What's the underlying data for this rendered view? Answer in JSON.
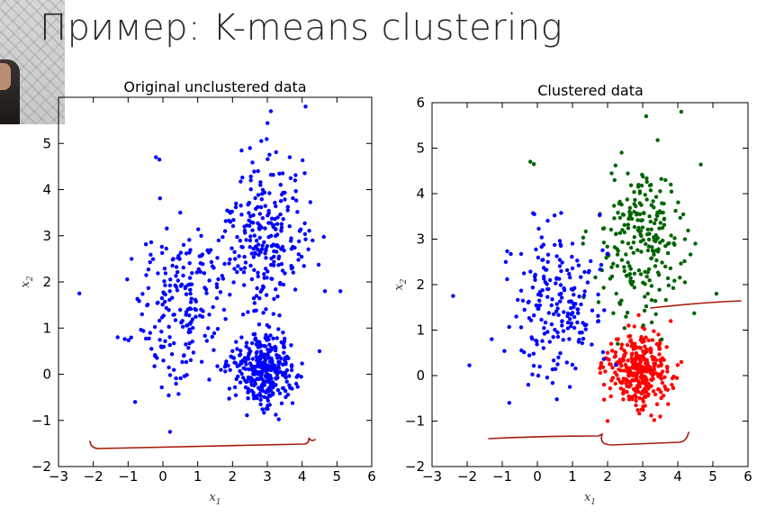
{
  "slide": {
    "title": "Пример: K-means clustering"
  },
  "chart_data": [
    {
      "type": "scatter",
      "title": "Original unclustered data",
      "xlabel": "x1",
      "ylabel": "x2",
      "xlim": [
        -3,
        6
      ],
      "ylim": [
        -2,
        6
      ],
      "xticks": [
        -3,
        -2,
        -1,
        0,
        1,
        2,
        3,
        4,
        5,
        6
      ],
      "yticks": [
        -2,
        -1,
        0,
        1,
        2,
        3,
        4,
        5
      ],
      "xtick_labels": [
        "−3",
        "−2",
        "−1",
        "0",
        "1",
        "2",
        "3",
        "4",
        "5",
        "6"
      ],
      "ytick_labels": [
        "−2",
        "−1",
        "0",
        "1",
        "2",
        "3",
        "4",
        "5"
      ],
      "grid": false,
      "colors": {
        "points": "#0000ff"
      },
      "series": [
        {
          "color": "#0000ff",
          "x": [
            -2.4,
            -0.2,
            -0.1,
            3.1,
            4.1,
            1.1,
            0.3,
            0.5,
            2.5,
            3.8,
            4.3,
            5.1,
            -0.9,
            -0.6,
            0.6,
            1.9,
            -1.3,
            -0.8,
            2.2,
            4.5,
            3.0,
            3.5,
            2.6,
            1.3,
            2.1,
            0.2,
            1.6,
            3.3,
            3.9,
            2.8
          ],
          "y": [
            1.75,
            4.7,
            4.65,
            5.7,
            5.8,
            3.0,
            2.5,
            3.5,
            4.9,
            4.2,
            2.9,
            1.8,
            2.5,
            1.3,
            0.4,
            2.4,
            0.8,
            -0.6,
            0.2,
            0.5,
            0.0,
            0.3,
            -0.4,
            1.0,
            3.7,
            1.8,
            2.9,
            3.4,
            2.6,
            4.1
          ],
          "clusters": [
            {
              "center": [
                2.9,
                0.1
              ],
              "spread": [
                0.42,
                0.42
              ],
              "count": 320
            },
            {
              "center": [
                2.9,
                3.0
              ],
              "spread": [
                0.62,
                0.85
              ],
              "count": 240
            },
            {
              "center": [
                0.6,
                1.5
              ],
              "spread": [
                0.65,
                0.85
              ],
              "count": 200
            }
          ]
        }
      ]
    },
    {
      "type": "scatter",
      "title": "Clustered data",
      "xlabel": "x1",
      "ylabel": "x2",
      "xlim": [
        -3,
        6
      ],
      "ylim": [
        -2,
        6
      ],
      "xticks": [
        -3,
        -2,
        -1,
        0,
        1,
        2,
        3,
        4,
        5,
        6
      ],
      "yticks": [
        -2,
        -1,
        0,
        1,
        2,
        3,
        4,
        5,
        6
      ],
      "xtick_labels": [
        "−3",
        "−2",
        "−1",
        "0",
        "1",
        "2",
        "3",
        "4",
        "5",
        "6"
      ],
      "ytick_labels": [
        "−2",
        "−1",
        "0",
        "1",
        "2",
        "3",
        "4",
        "5",
        "6"
      ],
      "grid": false,
      "colors": {
        "red": "#ff0000",
        "green": "#006400",
        "blue": "#0000ff"
      },
      "series": [
        {
          "color": "#ff0000",
          "x": [
            1.9,
            2.3,
            3.5,
            4.1,
            2.0,
            2.6,
            3.8
          ],
          "y": [
            -0.2,
            0.8,
            -0.9,
            0.3,
            -1.0,
            1.1,
            1.2
          ],
          "clusters": [
            {
              "center": [
                2.9,
                0.1
              ],
              "spread": [
                0.42,
                0.42
              ],
              "count": 320
            }
          ]
        },
        {
          "color": "#006400",
          "x": [
            -0.2,
            -0.1,
            3.1,
            4.1,
            4.5,
            5.1,
            2.4,
            1.3,
            3.8
          ],
          "y": [
            4.7,
            4.65,
            5.7,
            5.8,
            2.9,
            1.8,
            4.9,
            2.9,
            4.2
          ],
          "clusters": [
            {
              "center": [
                2.9,
                3.0
              ],
              "spread": [
                0.62,
                0.85
              ],
              "count": 240
            }
          ]
        },
        {
          "color": "#0000ff",
          "x": [
            -2.4,
            -1.3,
            -0.9,
            -0.6,
            -0.8,
            0.3,
            0.6,
            1.0
          ],
          "y": [
            1.75,
            0.8,
            2.5,
            1.3,
            -0.6,
            2.5,
            0.4,
            2.9
          ],
          "clusters": [
            {
              "center": [
                0.6,
                1.5
              ],
              "spread": [
                0.65,
                0.85
              ],
              "count": 200
            }
          ]
        }
      ]
    }
  ]
}
